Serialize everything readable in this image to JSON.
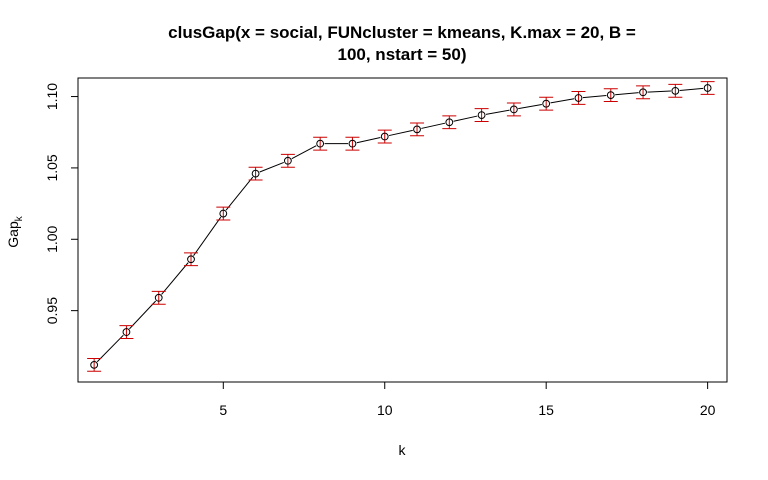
{
  "chart_data": {
    "type": "line",
    "title_line1": "clusGap(x = social, FUNcluster = kmeans, K.max = 20, B =",
    "title_line2": "100, nstart = 50)",
    "xlabel": "k",
    "ylabel_main": "Gap",
    "ylabel_sub": "k",
    "xlim": [
      0.5,
      20.6
    ],
    "ylim": [
      0.9,
      1.113
    ],
    "x_ticks": [
      5,
      10,
      15,
      20
    ],
    "x_tick_labels": [
      "5",
      "10",
      "15",
      "20"
    ],
    "y_ticks": [
      0.95,
      1.0,
      1.05,
      1.1
    ],
    "y_tick_labels": [
      "0.95",
      "1.00",
      "1.05",
      "1.10"
    ],
    "grid": false,
    "series": [
      {
        "x": [
          1,
          2,
          3,
          4,
          5,
          6,
          7,
          8,
          9,
          10,
          11,
          12,
          13,
          14,
          15,
          16,
          17,
          18,
          19,
          20
        ],
        "values": [
          0.912,
          0.935,
          0.959,
          0.986,
          1.018,
          1.046,
          1.055,
          1.067,
          1.067,
          1.072,
          1.077,
          1.082,
          1.087,
          1.091,
          1.095,
          1.099,
          1.101,
          1.103,
          1.104,
          1.106
        ],
        "error": [
          0.0045,
          0.0045,
          0.0045,
          0.0045,
          0.0045,
          0.0045,
          0.0045,
          0.0045,
          0.0045,
          0.0045,
          0.0045,
          0.0045,
          0.0045,
          0.0045,
          0.0045,
          0.0045,
          0.0045,
          0.0045,
          0.0045,
          0.0045
        ]
      }
    ],
    "colors": {
      "line": "#000000",
      "points": "#000000",
      "errorbars": "#cc0000"
    }
  }
}
